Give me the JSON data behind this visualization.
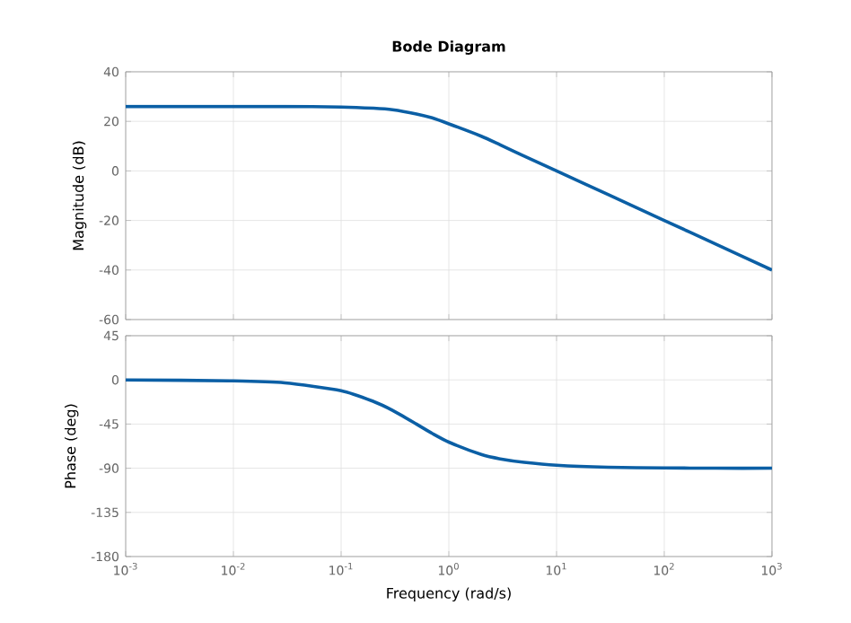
{
  "chart_data": [
    {
      "type": "line",
      "title": "Bode Diagram",
      "ylabel": "Magnitude (dB)",
      "log": "x",
      "grid": true,
      "marker": "none",
      "line_style": "solid",
      "tick_labels": "y",
      "x": [
        0.001,
        0.01,
        0.03,
        0.1,
        0.2,
        0.3,
        0.5,
        0.7,
        1,
        2,
        3,
        5,
        10,
        30,
        100,
        300,
        1000
      ],
      "series": [
        {
          "color": "#0b5fa5",
          "values": [
            26,
            26,
            26,
            25.8,
            25.3,
            24.7,
            23,
            21.4,
            19,
            14,
            10.5,
            6,
            0,
            -9.5,
            -20,
            -29.5,
            -40
          ]
        }
      ],
      "xlim": [
        0.001,
        1000
      ],
      "ylim": [
        -60,
        40
      ],
      "xticks": [
        {
          "value": 0.001,
          "label": null
        },
        {
          "value": 0.01,
          "label": null
        },
        {
          "value": 0.1,
          "label": null
        },
        {
          "value": 1,
          "label": null
        },
        {
          "value": 10,
          "label": null
        },
        {
          "value": 100,
          "label": null
        },
        {
          "value": 1000,
          "label": null
        }
      ],
      "yticks": [
        -60,
        -40,
        -20,
        0,
        20,
        40
      ]
    },
    {
      "type": "line",
      "xlabel": "Frequency  (rad/s)",
      "ylabel": "Phase (deg)",
      "log": "x",
      "grid": true,
      "marker": "none",
      "line_style": "solid",
      "x": [
        0.001,
        0.01,
        0.03,
        0.1,
        0.2,
        0.3,
        0.5,
        0.7,
        1,
        2,
        3,
        5,
        10,
        30,
        100,
        300,
        1000
      ],
      "series": [
        {
          "color": "#0b5fa5",
          "values": [
            0,
            -1,
            -3,
            -11,
            -22,
            -31,
            -45,
            -54.5,
            -63.4,
            -76,
            -80.5,
            -84,
            -87,
            -89,
            -89.7,
            -90,
            -90
          ]
        }
      ],
      "xlim": [
        0.001,
        1000
      ],
      "ylim": [
        -180,
        45
      ],
      "xticks": [
        {
          "value": 0.001,
          "label": "10$^{-3}$"
        },
        {
          "value": 0.01,
          "label": "10$^{-2}$"
        },
        {
          "value": 0.1,
          "label": "10$^{-1}$"
        },
        {
          "value": 1,
          "label": "10$^{0}$"
        },
        {
          "value": 10,
          "label": "10$^{1}$"
        },
        {
          "value": 100,
          "label": "10$^{2}$"
        },
        {
          "value": 1000,
          "label": "10$^{3}$"
        }
      ],
      "yticks": [
        -180,
        -135,
        -90,
        -45,
        0,
        45
      ]
    }
  ]
}
